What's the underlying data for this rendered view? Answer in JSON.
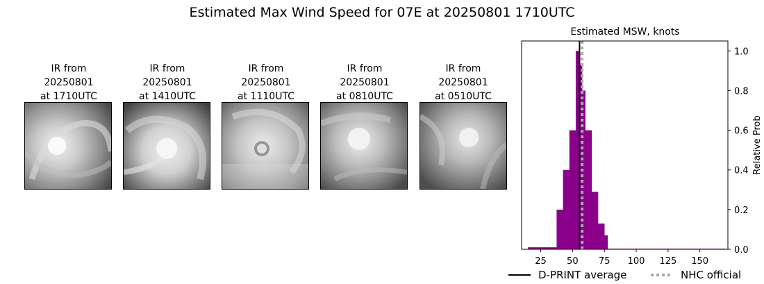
{
  "figure": {
    "title": "Estimated Max Wind Speed for 07E at 20250801 1710UTC"
  },
  "ir_panels": [
    {
      "line1": "IR from",
      "line2": "20250801",
      "line3": "at 1710UTC"
    },
    {
      "line1": "IR from",
      "line2": "20250801",
      "line3": "at 1410UTC"
    },
    {
      "line1": "IR from",
      "line2": "20250801",
      "line3": "at 1110UTC"
    },
    {
      "line1": "IR from",
      "line2": "20250801",
      "line3": "at 0810UTC"
    },
    {
      "line1": "IR from",
      "line2": "20250801",
      "line3": "at 0510UTC"
    }
  ],
  "chart_data": {
    "type": "bar",
    "title": "Estimated MSW, knots",
    "xlabel": "",
    "ylabel": "Relative Prob",
    "xlim": [
      10,
      172
    ],
    "ylim": [
      0,
      1.05
    ],
    "xticks": [
      25,
      50,
      75,
      100,
      125,
      150
    ],
    "yticks": [
      0.0,
      0.2,
      0.4,
      0.6,
      0.8,
      1.0
    ],
    "ytick_labels": [
      "0.0",
      "0.2",
      "0.4",
      "0.6",
      "0.8",
      "1.0"
    ],
    "grid": false,
    "y_axis_side": "right",
    "bin_width": 2.5,
    "x": [
      15,
      17.5,
      20,
      22.5,
      25,
      27.5,
      30,
      32.5,
      35,
      37.5,
      40,
      42.5,
      45,
      47.5,
      50,
      52.5,
      55,
      57.5,
      60,
      62.5,
      65,
      67.5,
      70,
      72.5,
      75,
      77.5,
      80,
      82.5,
      85,
      87.5,
      90,
      92.5,
      95,
      97.5,
      100,
      102.5,
      105,
      107.5,
      110,
      112.5,
      115,
      117.5,
      120,
      122.5,
      125,
      127.5,
      130,
      132.5,
      135,
      137.5,
      140,
      142.5,
      145,
      147.5,
      150,
      152.5,
      155,
      157.5,
      160,
      162.5,
      165,
      167.5
    ],
    "values": [
      0.01,
      0.01,
      0.01,
      0.01,
      0.01,
      0.01,
      0.01,
      0.01,
      0.01,
      0.2,
      0.2,
      0.4,
      0.4,
      0.6,
      0.6,
      1.0,
      0.93,
      0.8,
      0.6,
      0.6,
      0.29,
      0.29,
      0.13,
      0.13,
      0.07,
      0.003,
      0.003,
      0.003,
      0.003,
      0.003,
      0.003,
      0.003,
      0.003,
      0.003,
      0.003,
      0.003,
      0.003,
      0.003,
      0.003,
      0.003,
      0.003,
      0.003,
      0.003,
      0.003,
      0.003,
      0.003,
      0.003,
      0.003,
      0.003,
      0.003,
      0.003,
      0.003,
      0.003,
      0.003,
      0.003,
      0.003,
      0.003,
      0.003,
      0.003,
      0.003,
      0.003,
      0.003
    ],
    "bar_color": "#8b008b",
    "reference_lines": [
      {
        "name": "D-PRINT average",
        "x": 55.5,
        "color": "#000000",
        "style": "solid"
      },
      {
        "name": "NHC official",
        "x": 57.5,
        "color": "#a9a9a9",
        "style": "dotted"
      }
    ],
    "legend_placement": "bottom"
  }
}
